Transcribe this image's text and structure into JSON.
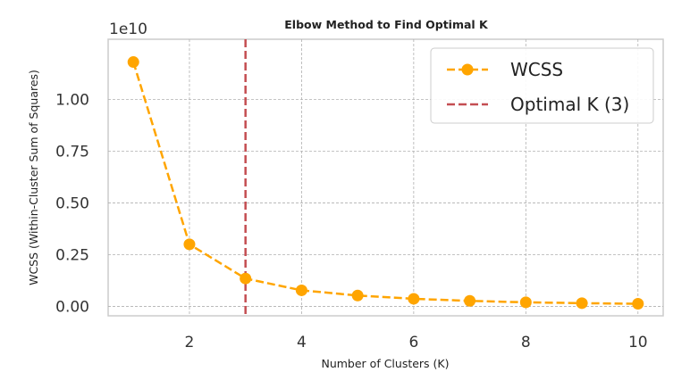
{
  "chart_data": {
    "type": "line",
    "title": "Elbow Method to Find Optimal K",
    "xlabel": "Number of Clusters (K)",
    "ylabel": "WCSS (Within-Cluster Sum of Squares)",
    "y_offset_label": "1e10",
    "x": [
      1,
      2,
      3,
      4,
      5,
      6,
      7,
      8,
      9,
      10
    ],
    "series": [
      {
        "name": "WCSS",
        "color": "#FFA500",
        "values": [
          11800000000,
          3000000000,
          1350000000,
          780000000,
          530000000,
          370000000,
          270000000,
          200000000,
          160000000,
          130000000
        ]
      }
    ],
    "reference_line": {
      "name": "Optimal K (3)",
      "x": 3,
      "color": "#C44E52",
      "style": "dashed"
    },
    "xlim": [
      0.55,
      10.45
    ],
    "ylim": [
      -450000000,
      12900000000
    ],
    "x_ticks": [
      2,
      4,
      6,
      8,
      10
    ],
    "x_tick_labels": [
      "2",
      "4",
      "6",
      "8",
      "10"
    ],
    "y_ticks": [
      0,
      2500000000,
      5000000000,
      7500000000,
      10000000000
    ],
    "y_tick_labels": [
      "0.00",
      "0.25",
      "0.50",
      "0.75",
      "1.00"
    ],
    "grid": true,
    "legend_position": "top-right"
  }
}
